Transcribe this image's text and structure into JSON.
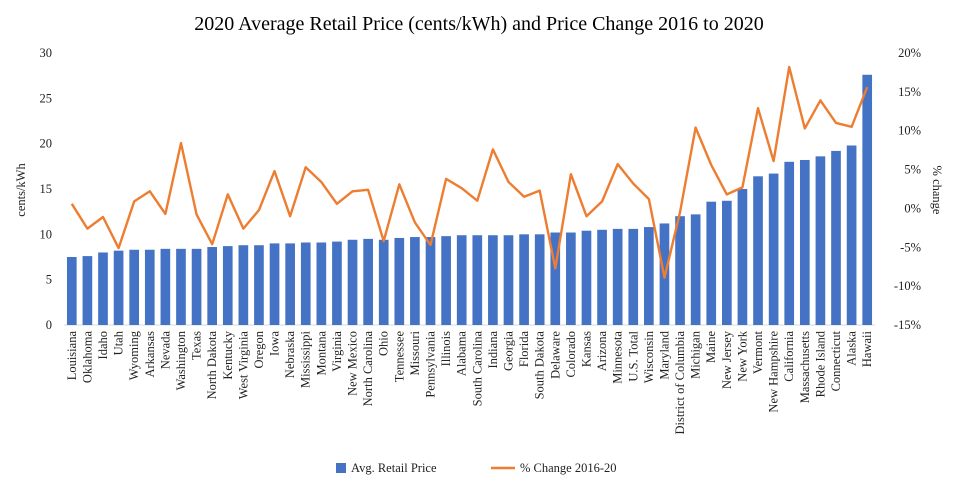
{
  "chart_data": {
    "type": "bar",
    "title": "2020 Average Retail Price (cents/kWh) and Price Change 2016 to 2020",
    "ylabel": "cents/kWh",
    "y2label": "% change",
    "ylim": [
      0,
      30
    ],
    "y2lim": [
      -15,
      20
    ],
    "yticks": [
      "0",
      "5",
      "10",
      "15",
      "20",
      "25",
      "30"
    ],
    "y2ticks": [
      "-15%",
      "-10%",
      "-5%",
      "0%",
      "5%",
      "10%",
      "15%",
      "20%"
    ],
    "grid": false,
    "legend_position": "bottom",
    "colors": {
      "bar": "#4472C4",
      "line": "#ED7D31"
    },
    "categories": [
      "Louisiana",
      "Oklahoma",
      "Idaho",
      "Utah",
      "Wyoming",
      "Arkansas",
      "Nevada",
      "Washington",
      "Texas",
      "North Dakota",
      "Kentucky",
      "West Virginia",
      "Oregon",
      "Iowa",
      "Nebraska",
      "Mississippi",
      "Montana",
      "Virginia",
      "New Mexico",
      "North Carolina",
      "Ohio",
      "Tennessee",
      "Missouri",
      "Pennsylvania",
      "Illinois",
      "Alabama",
      "South Carolina",
      "Indiana",
      "Georgia",
      "Florida",
      "South Dakota",
      "Delaware",
      "Colorado",
      "Kansas",
      "Arizona",
      "Minnesota",
      "U.S. Total",
      "Wisconsin",
      "Maryland",
      "District of Columbia",
      "Michigan",
      "Maine",
      "New Jersey",
      "New York",
      "Vermont",
      "New Hampshire",
      "California",
      "Massachusetts",
      "Rhode Island",
      "Connecticut",
      "Alaska",
      "Hawaii"
    ],
    "series": [
      {
        "name": "Avg. Retail Price",
        "type": "bar",
        "axis": "left",
        "values": [
          7.5,
          7.6,
          8.0,
          8.2,
          8.3,
          8.3,
          8.4,
          8.4,
          8.4,
          8.6,
          8.7,
          8.8,
          8.8,
          9.0,
          9.0,
          9.1,
          9.1,
          9.2,
          9.4,
          9.5,
          9.4,
          9.6,
          9.7,
          9.7,
          9.8,
          9.9,
          9.9,
          9.9,
          9.9,
          10.0,
          10.0,
          10.2,
          10.2,
          10.4,
          10.5,
          10.6,
          10.6,
          10.8,
          11.2,
          12.0,
          12.2,
          13.6,
          13.7,
          15.0,
          16.4,
          16.7,
          18.0,
          18.2,
          18.6,
          19.2,
          19.8,
          27.6
        ]
      },
      {
        "name": "% Change 2016-20",
        "type": "line",
        "axis": "right",
        "values": [
          0.6,
          -2.6,
          -1.1,
          -5.1,
          0.9,
          2.2,
          -0.7,
          8.4,
          -0.8,
          -4.6,
          1.8,
          -2.6,
          -0.2,
          4.8,
          -1.0,
          5.3,
          3.4,
          0.6,
          2.2,
          2.4,
          -4.2,
          3.1,
          -1.8,
          -4.7,
          3.8,
          2.6,
          1.0,
          7.6,
          3.4,
          1.5,
          2.3,
          -7.7,
          4.4,
          -1.0,
          0.9,
          5.7,
          3.2,
          1.2,
          -8.9,
          -0.5,
          10.4,
          5.6,
          1.8,
          2.7,
          12.9,
          6.1,
          18.2,
          10.3,
          13.9,
          11.0,
          10.5,
          15.6
        ]
      }
    ]
  }
}
